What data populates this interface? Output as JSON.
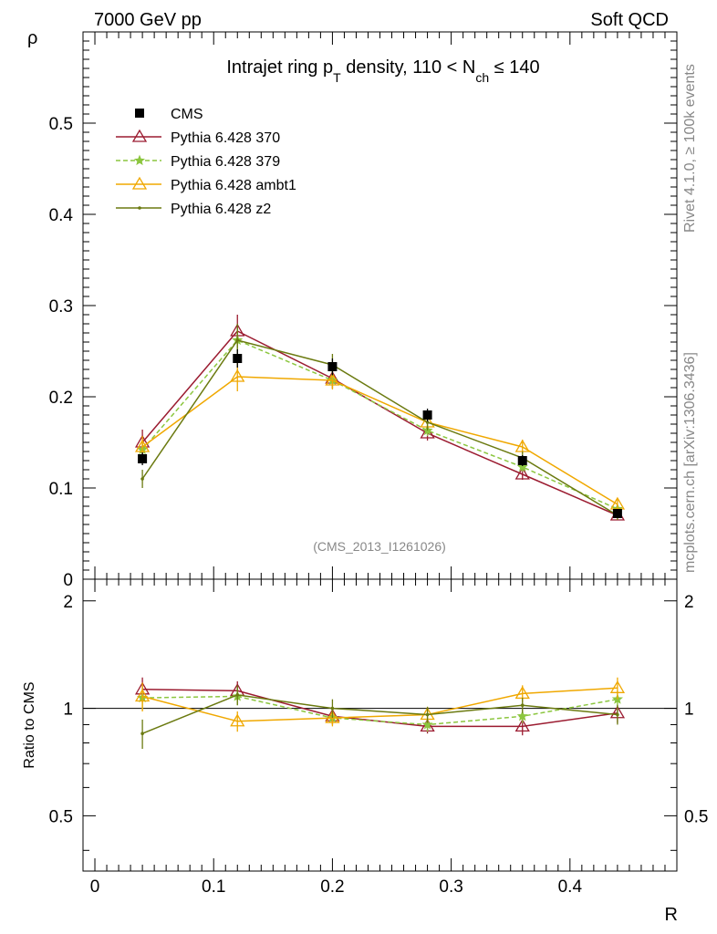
{
  "header": {
    "left": "7000 GeV pp",
    "right": "Soft QCD"
  },
  "side": {
    "rivet": "Rivet 4.1.0, ≥ 100k events",
    "mcplots": "mcplots.cern.ch [arXiv:1306.3436]"
  },
  "watermark": "(CMS_2013_I1261026)",
  "chart_data": {
    "type": "line",
    "title": "Intrajet ring pT density, 110 < Nch ≤ 140",
    "title_parts": {
      "a": "Intrajet ring p",
      "a_sub": "T",
      "b": " density, 110 < N",
      "b_sub": "ch",
      "c": " ≤ 140"
    },
    "xlabel": "R",
    "ylabel": "ρ",
    "ratio_ylabel": "Ratio to CMS",
    "xlim": [
      -0.01,
      0.49
    ],
    "ylim": [
      0,
      0.6
    ],
    "ratio_ylim": [
      0.35,
      2.3
    ],
    "x_ticks": [
      0,
      0.1,
      0.2,
      0.3,
      0.4
    ],
    "x_tick_labels": [
      "0",
      "0.1",
      "0.2",
      "0.3",
      "0.4"
    ],
    "y_ticks": [
      0,
      0.1,
      0.2,
      0.3,
      0.4,
      0.5
    ],
    "y_tick_labels": [
      "0",
      "0.1",
      "0.2",
      "0.3",
      "0.4",
      "0.5"
    ],
    "ratio_ticks": [
      0.5,
      1,
      2
    ],
    "ratio_tick_labels": [
      "0.5",
      "1",
      "2"
    ],
    "x": [
      0.04,
      0.12,
      0.2,
      0.28,
      0.36,
      0.44
    ],
    "data": {
      "name": "CMS",
      "values": [
        0.132,
        0.242,
        0.233,
        0.18,
        0.13,
        0.072
      ],
      "errors": [
        0.007,
        0.01,
        0.009,
        0.007,
        0.006,
        0.004
      ]
    },
    "series": [
      {
        "name": "Pythia 6.428 370",
        "color": "#9b1b30",
        "dashed": false,
        "marker": "triangle",
        "values": [
          0.15,
          0.272,
          0.22,
          0.16,
          0.115,
          0.07
        ],
        "errors": [
          0.014,
          0.018,
          0.011,
          0.008,
          0.006,
          0.004
        ],
        "ratio": [
          1.13,
          1.12,
          0.95,
          0.89,
          0.89,
          0.97
        ],
        "ratio_errors": [
          0.09,
          0.07,
          0.05,
          0.04,
          0.05,
          0.06
        ]
      },
      {
        "name": "Pythia 6.428 379",
        "color": "#8cc63f",
        "dashed": true,
        "marker": "star",
        "values": [
          0.142,
          0.262,
          0.218,
          0.163,
          0.123,
          0.077
        ],
        "errors": [
          0.01,
          0.012,
          0.008,
          0.006,
          0.005,
          0.004
        ],
        "ratio": [
          1.07,
          1.08,
          0.94,
          0.9,
          0.95,
          1.06
        ],
        "ratio_errors": [
          0.08,
          0.06,
          0.04,
          0.04,
          0.04,
          0.06
        ]
      },
      {
        "name": "Pythia 6.428 ambt1",
        "color": "#f0a800",
        "dashed": false,
        "marker": "triangle",
        "values": [
          0.145,
          0.222,
          0.218,
          0.172,
          0.145,
          0.082
        ],
        "errors": [
          0.012,
          0.016,
          0.01,
          0.008,
          0.008,
          0.006
        ],
        "ratio": [
          1.08,
          0.92,
          0.94,
          0.96,
          1.1,
          1.14
        ],
        "ratio_errors": [
          0.1,
          0.06,
          0.05,
          0.05,
          0.06,
          0.08
        ]
      },
      {
        "name": "Pythia 6.428 z2",
        "color": "#6b7a10",
        "dashed": false,
        "marker": "dot",
        "values": [
          0.11,
          0.262,
          0.235,
          0.172,
          0.133,
          0.07
        ],
        "errors": [
          0.01,
          0.018,
          0.012,
          0.009,
          0.007,
          0.005
        ],
        "ratio": [
          0.85,
          1.09,
          1.0,
          0.96,
          1.02,
          0.96
        ],
        "ratio_errors": [
          0.08,
          0.07,
          0.06,
          0.05,
          0.05,
          0.06
        ]
      }
    ]
  }
}
